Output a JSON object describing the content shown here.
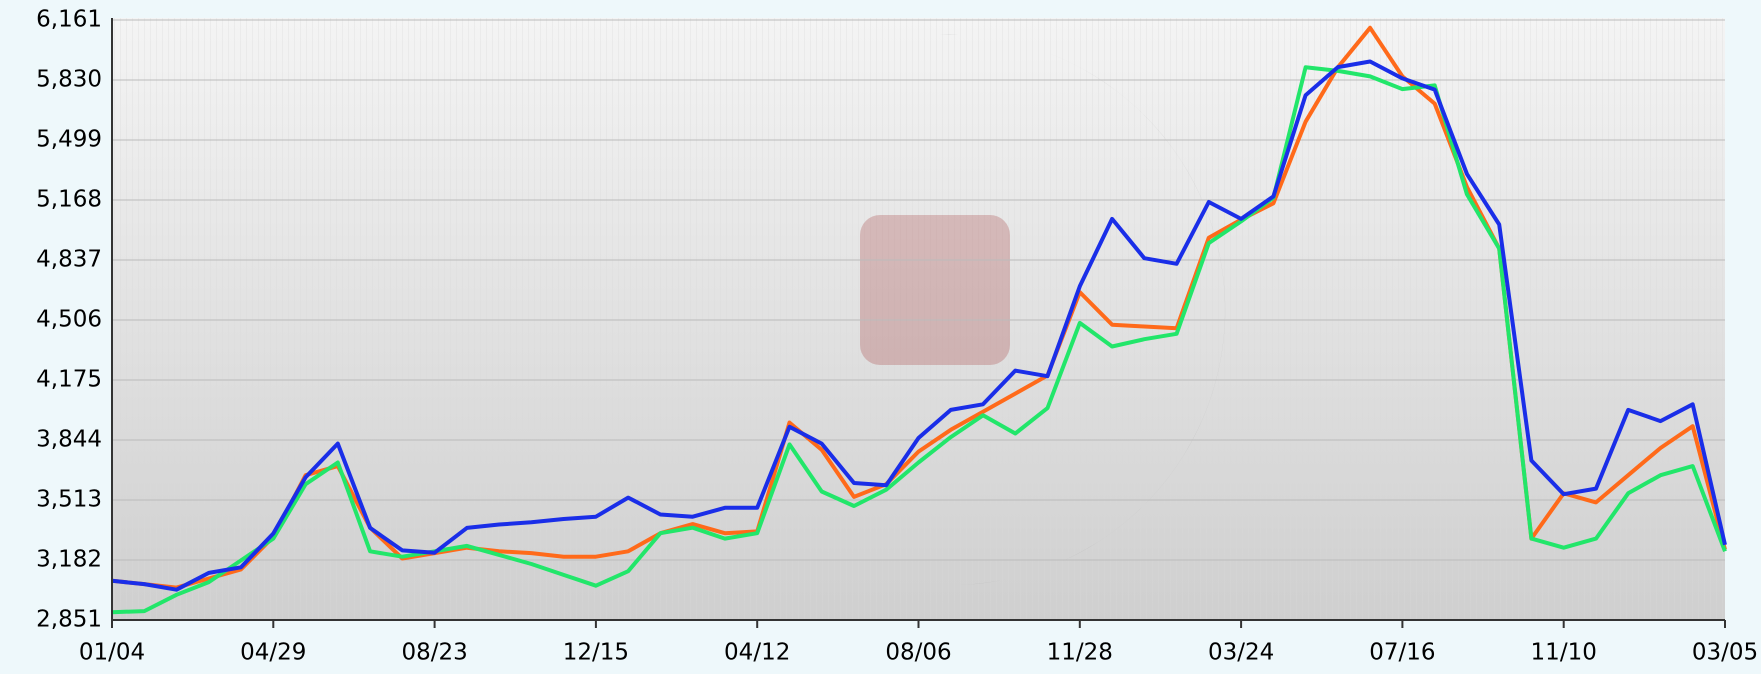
{
  "chart_data": {
    "type": "line",
    "categories": [
      "01/04",
      null,
      null,
      null,
      null,
      "04/29",
      null,
      null,
      null,
      null,
      "08/23",
      null,
      null,
      null,
      null,
      "12/15",
      null,
      null,
      null,
      null,
      "04/12",
      null,
      null,
      null,
      null,
      "08/06",
      null,
      null,
      null,
      null,
      "11/28",
      null,
      null,
      null,
      null,
      "03/24",
      null,
      null,
      null,
      null,
      "07/16",
      null,
      null,
      null,
      null,
      "11/10",
      null,
      null,
      null,
      null,
      "03/05"
    ],
    "series": [
      {
        "color": "#ff6a1a",
        "values": [
          3067,
          3049,
          3030,
          3080,
          3130,
          3310,
          3650,
          3700,
          3360,
          3190,
          3220,
          3250,
          3230,
          3220,
          3200,
          3200,
          3230,
          3330,
          3380,
          3330,
          3340,
          3940,
          3790,
          3530,
          3600,
          3780,
          3900,
          4000,
          4100,
          4200,
          4660,
          4480,
          4470,
          4460,
          4960,
          5060,
          5150,
          5600,
          5900,
          6118,
          5850,
          5700,
          5240,
          4900,
          3300,
          3550,
          3500,
          3650,
          3800,
          3920,
          3240
        ]
      },
      {
        "color": "#22e66a",
        "values": [
          2894,
          2900,
          2990,
          3060,
          3180,
          3300,
          3600,
          3720,
          3230,
          3200,
          3230,
          3260,
          3210,
          3160,
          3100,
          3040,
          3120,
          3330,
          3360,
          3300,
          3330,
          3820,
          3560,
          3480,
          3570,
          3720,
          3860,
          3980,
          3880,
          4020,
          4490,
          4360,
          4400,
          4430,
          4930,
          5050,
          5180,
          5900,
          5880,
          5850,
          5780,
          5800,
          5200,
          4900,
          3300,
          3250,
          3300,
          3550,
          3650,
          3700,
          3230
        ]
      },
      {
        "color": "#1a2ee8",
        "values": [
          3067,
          3049,
          3018,
          3111,
          3142,
          3328,
          3638,
          3824,
          3359,
          3235,
          3222,
          3359,
          3378,
          3390,
          3408,
          3421,
          3526,
          3433,
          3421,
          3470,
          3470,
          3917,
          3824,
          3607,
          3594,
          3855,
          4010,
          4041,
          4227,
          4196,
          4692,
          5064,
          4847,
          4816,
          5157,
          5064,
          5188,
          5746,
          5901,
          5932,
          5839,
          5777,
          5312,
          5033,
          3731,
          3545,
          3576,
          4010,
          3948,
          4041,
          3266
        ]
      }
    ],
    "ylim": [
      2851,
      6161
    ],
    "yticks": [
      {
        "value": 2851,
        "label": "2,851"
      },
      {
        "value": 3182,
        "label": "3,182"
      },
      {
        "value": 3513,
        "label": "3,513"
      },
      {
        "value": 3844,
        "label": "3,844"
      },
      {
        "value": 4175,
        "label": "4,175"
      },
      {
        "value": 4506,
        "label": "4,506"
      },
      {
        "value": 4837,
        "label": "4,837"
      },
      {
        "value": 5168,
        "label": "5,168"
      },
      {
        "value": 5499,
        "label": "5,499"
      },
      {
        "value": 5830,
        "label": "5,830"
      },
      {
        "value": 6161,
        "label": "6,161"
      }
    ],
    "grid": true
  }
}
